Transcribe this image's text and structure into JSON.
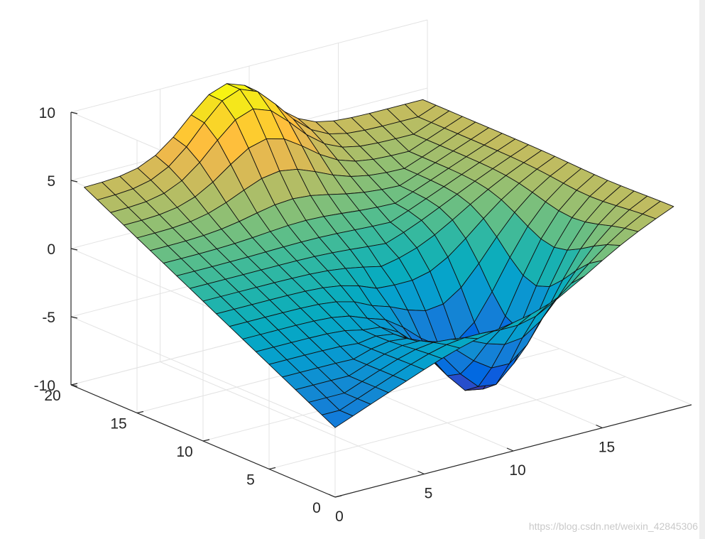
{
  "chart_data": {
    "type": "surface",
    "title": "",
    "xlabel": "",
    "ylabel": "",
    "zlabel": "",
    "grid": true,
    "colormap": "parula",
    "xlim": [
      0,
      20
    ],
    "ylim": [
      0,
      20
    ],
    "zlim": [
      -10,
      10
    ],
    "x_ticks": [
      "0",
      "5",
      "10",
      "15"
    ],
    "y_ticks": [
      "0",
      "5",
      "10",
      "15",
      "20"
    ],
    "z_ticks": [
      "-10",
      "-5",
      "0",
      "5",
      "10"
    ],
    "grid_size": [
      20,
      20
    ],
    "surface_description": "tilted plane with a peak and a trough",
    "corner_values": {
      "x0_y0": -4.9,
      "x19_y0": 4.9,
      "x0_y19": 4.9,
      "x19_y19": 4.9
    },
    "peak": {
      "x": 8,
      "y": 18,
      "z": 9.8
    },
    "trough": {
      "x": 12,
      "y": 5,
      "z": -8.2
    }
  },
  "watermark": "https://blog.csdn.net/weixin_42845306"
}
